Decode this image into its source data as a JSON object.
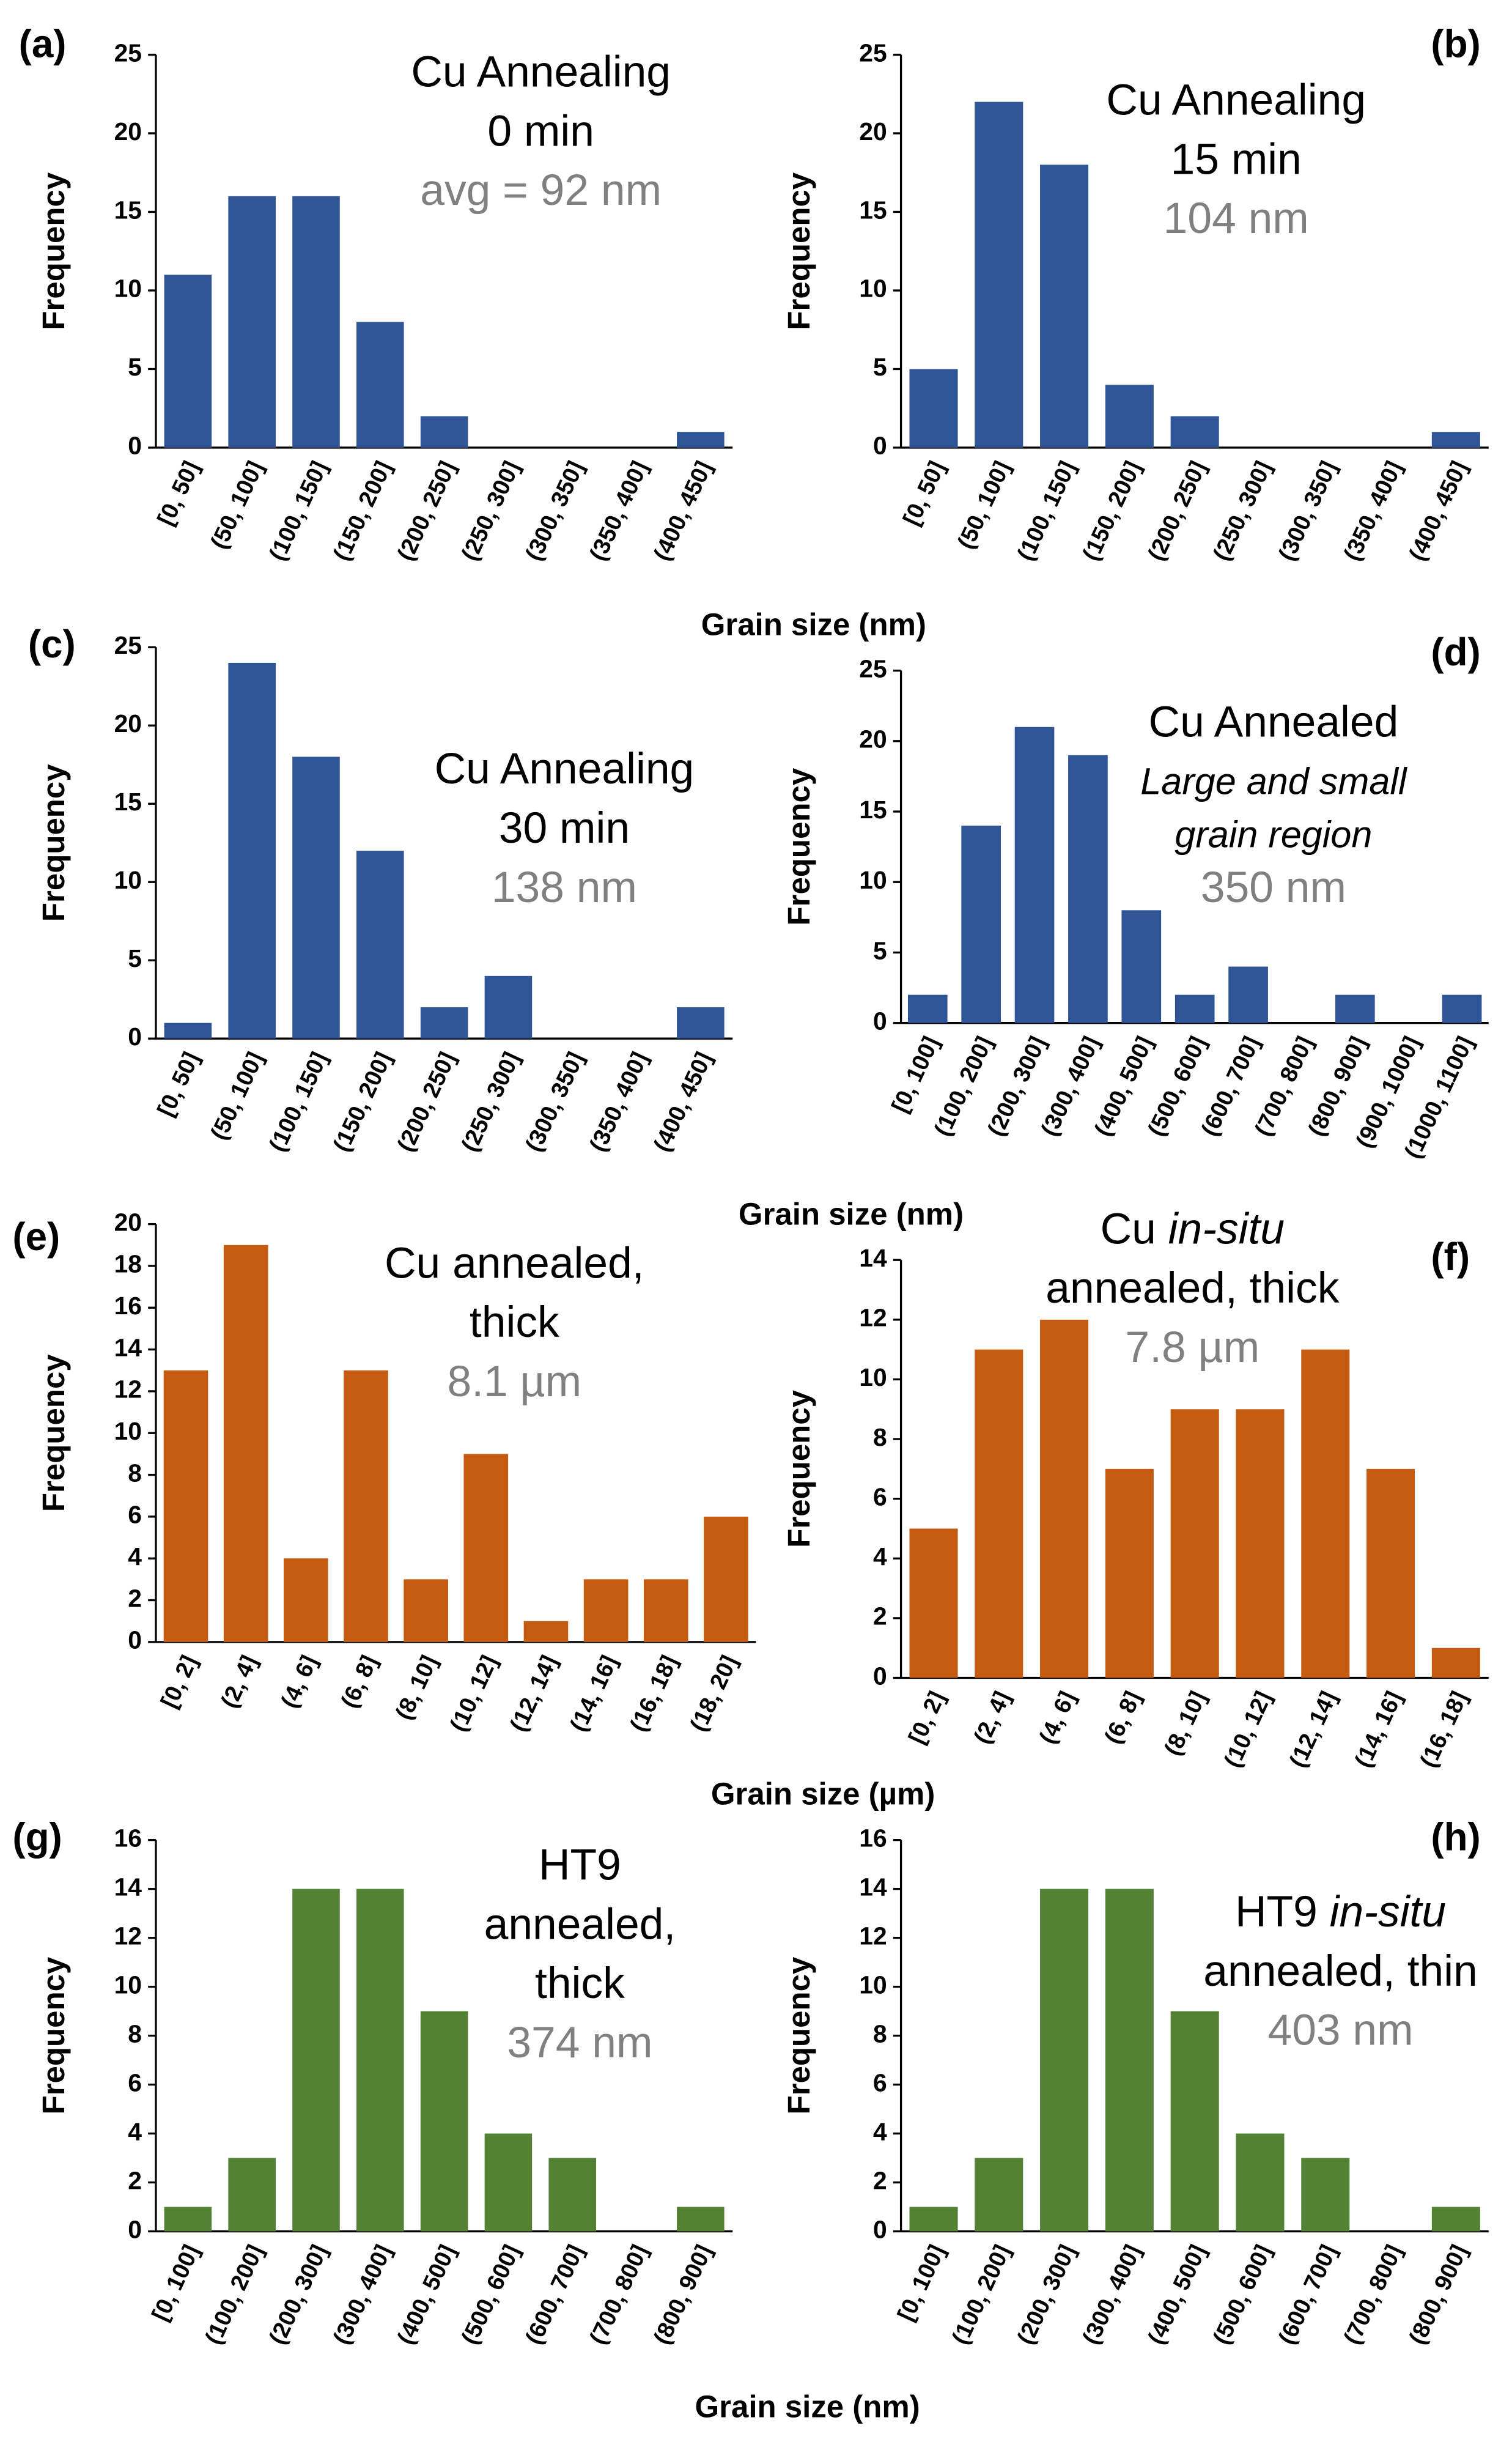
{
  "chart_data": [
    {
      "type": "bar",
      "panel": "(a)",
      "ylabel": "Frequency",
      "xlabel": "Grain size (nm)",
      "annotation": [
        "Cu Annealing",
        "0 min"
      ],
      "average": "avg = 92 nm",
      "color": "#2f5597",
      "categories": [
        "[0, 50]",
        "(50, 100]",
        "(100, 150]",
        "(150, 200]",
        "(200, 250]",
        "(250, 300]",
        "(300, 350]",
        "(350, 400]",
        "(400, 450]"
      ],
      "values": [
        11,
        16,
        16,
        8,
        2,
        0,
        0,
        0,
        1
      ],
      "ylim": [
        0,
        25
      ],
      "yticks": [
        0,
        5,
        10,
        15,
        20,
        25
      ]
    },
    {
      "type": "bar",
      "panel": "(b)",
      "ylabel": "Frequency",
      "annotation": [
        "Cu Annealing",
        "15 min"
      ],
      "average": "104 nm",
      "color": "#2f5597",
      "categories": [
        "[0, 50]",
        "(50, 100]",
        "(100, 150]",
        "(150, 200]",
        "(200, 250]",
        "(250, 300]",
        "(300, 350]",
        "(350, 400]",
        "(400, 450]"
      ],
      "values": [
        5,
        22,
        18,
        4,
        2,
        0,
        0,
        0,
        1
      ],
      "ylim": [
        0,
        25
      ],
      "yticks": [
        0,
        5,
        10,
        15,
        20,
        25
      ]
    },
    {
      "type": "bar",
      "panel": "(c)",
      "ylabel": "Frequency",
      "xlabel": "Grain size (nm)",
      "annotation": [
        "Cu Annealing",
        "30 min"
      ],
      "average": "138 nm",
      "color": "#2f5597",
      "categories": [
        "[0, 50]",
        "(50, 100]",
        "(100, 150]",
        "(150, 200]",
        "(200, 250]",
        "(250, 300]",
        "(300, 350]",
        "(350, 400]",
        "(400, 450]"
      ],
      "values": [
        1,
        24,
        18,
        12,
        2,
        4,
        0,
        0,
        2
      ],
      "ylim": [
        0,
        25
      ],
      "yticks": [
        0,
        5,
        10,
        15,
        20,
        25
      ]
    },
    {
      "type": "bar",
      "panel": "(d)",
      "ylabel": "Frequency",
      "annotation": [
        "Cu Annealed",
        [
          {
            "text": "Large and small",
            "italic": true
          }
        ],
        [
          {
            "text": "grain region",
            "italic": true
          }
        ]
      ],
      "average": "350 nm",
      "color": "#2f5597",
      "categories": [
        "[0, 100]",
        "(100, 200]",
        "(200, 300]",
        "(300, 400]",
        "(400, 500]",
        "(500, 600]",
        "(600, 700]",
        "(700, 800]",
        "(800, 900]",
        "(900, 1000]",
        "(1000, 1100]"
      ],
      "values": [
        2,
        14,
        21,
        19,
        8,
        2,
        4,
        0,
        2,
        0,
        2
      ],
      "ylim": [
        0,
        25
      ],
      "yticks": [
        0,
        5,
        10,
        15,
        20,
        25
      ]
    },
    {
      "type": "bar",
      "panel": "(e)",
      "ylabel": "Frequency",
      "xlabel": "Grain size (µm)",
      "annotation": [
        "Cu annealed,",
        "thick"
      ],
      "average": "8.1 µm",
      "color": "#c55a11",
      "categories": [
        "[0, 2]",
        "(2, 4]",
        "(4, 6]",
        "(6, 8]",
        "(8, 10]",
        "(10, 12]",
        "(12, 14]",
        "(14, 16]",
        "(16, 18]",
        "(18, 20]"
      ],
      "values": [
        13,
        19,
        4,
        13,
        3,
        9,
        1,
        3,
        3,
        6
      ],
      "ylim": [
        0,
        20
      ],
      "yticks": [
        0,
        2,
        4,
        6,
        8,
        10,
        12,
        14,
        16,
        18,
        20
      ]
    },
    {
      "type": "bar",
      "panel": "(f)",
      "ylabel": "Frequency",
      "annotation": [
        [
          {
            "text": "Cu "
          },
          {
            "text": "in-situ",
            "italic": true
          }
        ],
        "annealed, thick"
      ],
      "average": "7.8 µm",
      "color": "#c55a11",
      "categories": [
        "[0, 2]",
        "(2, 4]",
        "(4, 6]",
        "(6, 8]",
        "(8, 10]",
        "(10, 12]",
        "(12, 14]",
        "(14, 16]",
        "(16, 18]"
      ],
      "values": [
        5,
        11,
        12,
        7,
        9,
        9,
        11,
        7,
        1
      ],
      "ylim": [
        0,
        14
      ],
      "yticks": [
        0,
        2,
        4,
        6,
        8,
        10,
        12,
        14
      ]
    },
    {
      "type": "bar",
      "panel": "(g)",
      "ylabel": "Frequency",
      "xlabel": "Grain size (nm)",
      "annotation": [
        "HT9",
        "annealed,",
        "thick"
      ],
      "average": "374 nm",
      "color": "#548235",
      "categories": [
        "[0, 100]",
        "(100, 200]",
        "(200, 300]",
        "(300, 400]",
        "(400, 500]",
        "(500, 600]",
        "(600, 700]",
        "(700, 800]",
        "(800, 900]"
      ],
      "values": [
        1,
        3,
        14,
        14,
        9,
        4,
        3,
        0,
        1
      ],
      "ylim": [
        0,
        16
      ],
      "yticks": [
        0,
        2,
        4,
        6,
        8,
        10,
        12,
        14,
        16
      ]
    },
    {
      "type": "bar",
      "panel": "(h)",
      "ylabel": "Frequency",
      "annotation": [
        [
          {
            "text": "HT9 "
          },
          {
            "text": "in-situ",
            "italic": true
          }
        ],
        "annealed, thin"
      ],
      "average": "403 nm",
      "color": "#548235",
      "categories": [
        "[0, 100]",
        "(100, 200]",
        "(200, 300]",
        "(300, 400]",
        "(400, 500]",
        "(500, 600]",
        "(600, 700]",
        "(700, 800]",
        "(800, 900]"
      ],
      "values": [
        1,
        3,
        14,
        14,
        9,
        4,
        3,
        0,
        1
      ],
      "ylim": [
        0,
        16
      ],
      "yticks": [
        0,
        2,
        4,
        6,
        8,
        10,
        12,
        14,
        16
      ]
    }
  ]
}
